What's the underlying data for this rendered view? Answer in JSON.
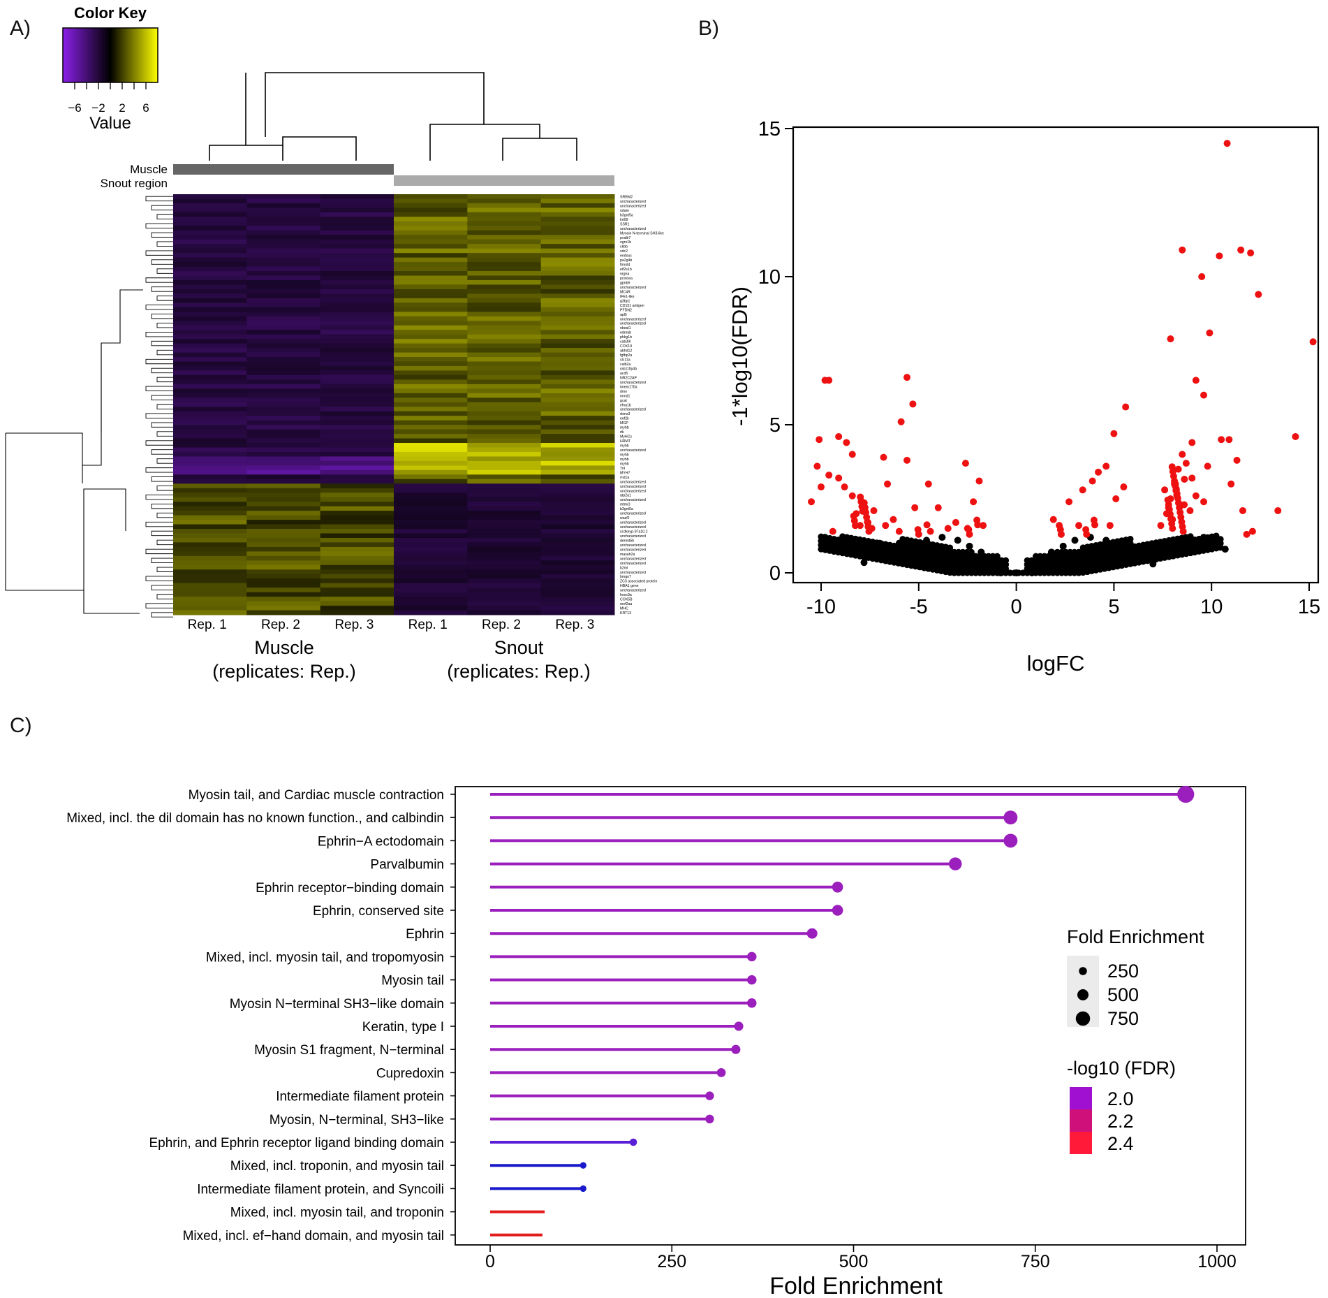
{
  "panels": {
    "a": "A)",
    "b": "B)",
    "c": "C)"
  },
  "color_key": {
    "title": "Color Key",
    "ticks": [
      "−6",
      "−2",
      "2",
      "6"
    ],
    "tick_values": [
      -6,
      -2,
      2,
      6
    ],
    "range": [
      -8,
      8
    ],
    "xlabel": "Value",
    "low_color": "#8a1fe8",
    "mid_color": "#000000",
    "high_color": "#ffff00"
  },
  "heatmap": {
    "annotation_labels": [
      "Muscle",
      "Snout region"
    ],
    "annotation_colors": {
      "muscle": "#666666",
      "snout": "#aaaaaa"
    },
    "column_labels": [
      "Rep. 1",
      "Rep. 2",
      "Rep. 3",
      "Rep. 1",
      "Rep. 2",
      "Rep. 3"
    ],
    "group_labels": [
      {
        "name": "Muscle",
        "sub": "(replicates: Rep.)"
      },
      {
        "name": "Snout",
        "sub": "(replicates: Rep.)"
      }
    ],
    "gene_labels": [
      "SRRM2",
      "uncharacterized",
      "uncharacterized",
      "odam",
      "b3gnt5a",
      "krt99",
      "SSR1",
      "uncharacterized",
      "Myosin N-terminal SH3-like",
      "pvalb7",
      "egrn1b",
      "ckbb",
      "sdc2",
      "endouc",
      "pa2g4b",
      "fmod4",
      "elf2s1b",
      "nrgna",
      "pcolcea",
      "gpnb5",
      "uncharacterized",
      "MC4R",
      "IFE1-like",
      "g3bp1",
      "CD151 antigen",
      "PFDN2",
      "apl5",
      "uncharacterized",
      "uncharacterized",
      "nbeal1",
      "ednrab",
      "phkg1b",
      "cab39l",
      "COX19",
      "abhd12",
      "fgfbp2a",
      "slc11a",
      "calb2a",
      "rab11fip4b",
      "acd5",
      "NR2C2AP",
      "uncharacterized",
      "tmem170a",
      "dmn",
      "mmd1",
      "gcat",
      "efna1b",
      "uncharacterized",
      "rbms3",
      "eef2k",
      "MGP",
      "myhb",
      "rtk",
      "MyHCs",
      "HRMT",
      "myhb",
      "uncharacterized",
      "myhb",
      "myhb",
      "myhb",
      "TnI",
      "MYH7",
      "rnd1a",
      "uncharacterized",
      "uncharacterized",
      "uncharacterized",
      "atp2a1",
      "uncharacterized",
      "mtmr3",
      "b3gnt5a",
      "uncharacterized",
      "wasf2",
      "uncharacterized",
      "uncharacterized",
      "si:dkeyp-97a10.2",
      "uncharacterized",
      "dennd5b",
      "uncharacterized",
      "uncharacterized",
      "masah2a",
      "uncharacterized",
      "uncharacterized",
      "b2ml",
      "uncharacterized",
      "hmgn7",
      "ZC3 associated protein",
      "HBA1 gene",
      "uncharacterized",
      "hoxc9a",
      "COX5B",
      "mef2aa",
      "MHC",
      "KRT13"
    ]
  },
  "chart_data": [
    {
      "type": "scatter",
      "title": "",
      "xlabel": "logFC",
      "ylabel": "-1*log10(FDR)",
      "xlim": [
        -11,
        16
      ],
      "ylim": [
        0,
        15
      ],
      "xticks": [
        -10,
        -5,
        0,
        5,
        10,
        15
      ],
      "yticks": [
        0,
        5,
        10,
        15
      ],
      "xtick_labels": [
        "-10",
        "-5",
        "0",
        "5",
        "10",
        "15"
      ],
      "ytick_labels": [
        "0",
        "5",
        "10",
        "15"
      ],
      "series": [
        {
          "name": "significant",
          "color": "#ee1111",
          "points": [
            [
              10.8,
              14.5
            ],
            [
              8.5,
              10.9
            ],
            [
              10.4,
              10.7
            ],
            [
              11.5,
              10.9
            ],
            [
              12.0,
              10.8
            ],
            [
              9.5,
              10.0
            ],
            [
              12.4,
              9.4
            ],
            [
              9.9,
              8.1
            ],
            [
              7.9,
              7.9
            ],
            [
              15.2,
              7.8
            ],
            [
              -9.8,
              6.5
            ],
            [
              -9.6,
              6.5
            ],
            [
              -5.6,
              6.6
            ],
            [
              9.2,
              6.5
            ],
            [
              9.6,
              6.0
            ],
            [
              -5.3,
              5.7
            ],
            [
              5.6,
              5.6
            ],
            [
              -5.9,
              5.1
            ],
            [
              -10.1,
              4.5
            ],
            [
              5.0,
              4.7
            ],
            [
              14.3,
              4.6
            ],
            [
              10.5,
              4.5
            ],
            [
              10.9,
              4.5
            ],
            [
              9.0,
              4.4
            ],
            [
              -9.1,
              4.6
            ],
            [
              -8.7,
              4.4
            ],
            [
              -8.4,
              4.0
            ],
            [
              -6.8,
              3.9
            ],
            [
              -5.6,
              3.8
            ],
            [
              11.3,
              3.8
            ],
            [
              9.8,
              3.6
            ],
            [
              -10.2,
              3.6
            ],
            [
              -9.6,
              3.3
            ],
            [
              -2.6,
              3.7
            ],
            [
              -1.9,
              3.1
            ],
            [
              -10.0,
              2.9
            ],
            [
              -6.6,
              3.0
            ],
            [
              -4.5,
              3.0
            ],
            [
              -10.5,
              2.4
            ],
            [
              11.0,
              3.0
            ],
            [
              13.4,
              2.1
            ],
            [
              12.1,
              1.4
            ],
            [
              11.8,
              1.3
            ],
            [
              11.6,
              2.1
            ],
            [
              4.6,
              3.6
            ],
            [
              4.2,
              3.4
            ],
            [
              3.9,
              3.1
            ],
            [
              3.4,
              2.8
            ],
            [
              2.7,
              2.4
            ],
            [
              1.9,
              1.8
            ],
            [
              2.2,
              1.6
            ],
            [
              -2.2,
              2.4
            ],
            [
              -1.7,
              1.6
            ],
            [
              -3.1,
              1.7
            ],
            [
              -4.0,
              2.2
            ],
            [
              -5.2,
              2.2
            ],
            [
              -6.3,
              1.8
            ],
            [
              -7.3,
              2.1
            ],
            [
              -7.6,
              1.7
            ],
            [
              -8.0,
              1.6
            ],
            [
              -8.4,
              2.6
            ],
            [
              -8.8,
              2.9
            ],
            [
              -9.1,
              3.2
            ],
            [
              -7.9,
              2.4
            ],
            [
              -8.2,
              2.0
            ],
            [
              -7.4,
              1.5
            ],
            [
              7.4,
              1.6
            ],
            [
              7.7,
              2.0
            ],
            [
              7.9,
              2.5
            ],
            [
              8.1,
              3.0
            ],
            [
              8.3,
              3.5
            ],
            [
              8.5,
              4.0
            ],
            [
              8.7,
              3.7
            ],
            [
              8.2,
              2.8
            ],
            [
              7.8,
              2.2
            ],
            [
              8.0,
              1.8
            ],
            [
              8.6,
              2.3
            ],
            [
              8.9,
              2.1
            ],
            [
              9.2,
              2.6
            ],
            [
              9.6,
              2.4
            ],
            [
              9.0,
              3.2
            ],
            [
              7.6,
              2.8
            ],
            [
              5.1,
              2.5
            ],
            [
              5.5,
              2.9
            ],
            [
              4.8,
              1.6
            ],
            [
              3.2,
              1.6
            ],
            [
              -2.5,
              1.5
            ],
            [
              -3.5,
              1.5
            ],
            [
              -4.4,
              1.4
            ],
            [
              -6.0,
              1.4
            ],
            [
              -6.7,
              1.6
            ],
            [
              -9.4,
              1.4
            ]
          ]
        },
        {
          "name": "not significant",
          "color": "#000000",
          "points": [
            [
              -9.8,
              1.2
            ],
            [
              -9.2,
              1.0
            ],
            [
              -8.6,
              0.9
            ],
            [
              -8.0,
              0.8
            ],
            [
              -7.4,
              0.7
            ],
            [
              -6.8,
              0.55
            ],
            [
              -6.2,
              0.45
            ],
            [
              -5.5,
              0.4
            ],
            [
              -4.8,
              0.3
            ],
            [
              -4.0,
              0.25
            ],
            [
              -3.3,
              0.2
            ],
            [
              -2.6,
              0.15
            ],
            [
              -2.0,
              0.1
            ],
            [
              -1.4,
              0.05
            ],
            [
              -0.8,
              0.0
            ],
            [
              0,
              0
            ],
            [
              0.8,
              0.0
            ],
            [
              1.4,
              0.05
            ],
            [
              2.0,
              0.1
            ],
            [
              2.6,
              0.15
            ],
            [
              3.3,
              0.2
            ],
            [
              4.0,
              0.25
            ],
            [
              4.8,
              0.3
            ],
            [
              5.5,
              0.4
            ],
            [
              6.2,
              0.5
            ],
            [
              6.8,
              0.6
            ],
            [
              7.4,
              0.7
            ],
            [
              8.0,
              0.8
            ],
            [
              8.6,
              0.9
            ],
            [
              9.2,
              1.0
            ],
            [
              9.8,
              1.1
            ],
            [
              10.3,
              1.1
            ],
            [
              10.7,
              0.8
            ],
            [
              -4.6,
              1.1
            ],
            [
              -3.8,
              1.2
            ],
            [
              -3.0,
              1.1
            ],
            [
              -2.4,
              0.9
            ],
            [
              -1.8,
              0.7
            ],
            [
              -1.2,
              0.5
            ],
            [
              1.2,
              0.5
            ],
            [
              1.8,
              0.7
            ],
            [
              2.4,
              0.9
            ],
            [
              3.0,
              1.1
            ],
            [
              3.8,
              1.2
            ],
            [
              4.6,
              1.1
            ],
            [
              5.4,
              1.0
            ],
            [
              6.0,
              0.8
            ],
            [
              7.0,
              0.3
            ],
            [
              7.2,
              1.0
            ],
            [
              -7.0,
              1.0
            ],
            [
              -6.0,
              1.0
            ],
            [
              -5.2,
              0.8
            ],
            [
              -3.6,
              0.7
            ],
            [
              3.6,
              0.7
            ],
            [
              5.0,
              0.7
            ],
            [
              -2.8,
              0.5
            ],
            [
              2.8,
              0.5
            ],
            [
              -4.2,
              0.5
            ],
            [
              4.2,
              0.5
            ],
            [
              9.6,
              1.2
            ],
            [
              -9.5,
              0.8
            ],
            [
              -7.8,
              0.35
            ]
          ]
        }
      ]
    },
    {
      "type": "lollipop",
      "title": "",
      "xlabel": "Fold Enrichment",
      "ylabel": "",
      "xlim": [
        -20,
        1040
      ],
      "xticks": [
        0,
        250,
        500,
        750,
        1000
      ],
      "xtick_labels": [
        "0",
        "250",
        "500",
        "750",
        "1000"
      ],
      "categories": [
        "Myosin tail, and Cardiac muscle contraction",
        "Mixed, incl. the dil domain has no known function., and calbindin",
        "Ephrin−A ectodomain",
        "Parvalbumin",
        "Ephrin receptor−binding domain",
        "Ephrin, conserved site",
        "Ephrin",
        "Mixed, incl. myosin tail, and tropomyosin",
        "Myosin tail",
        "Myosin N−terminal SH3−like domain",
        "Keratin, type I",
        "Myosin S1 fragment, N−terminal",
        "Cupredoxin",
        "Intermediate filament protein",
        "Myosin, N−terminal, SH3−like",
        "Ephrin, and Ephrin receptor ligand binding domain",
        "Mixed, incl. troponin, and myosin tail",
        "Intermediate filament protein, and Syncoili",
        "Mixed, incl. myosin tail, and troponin",
        "Mixed, incl. ef−hand domain, and myosin tail"
      ],
      "values": [
        957,
        716,
        716,
        640,
        478,
        478,
        443,
        360,
        360,
        360,
        342,
        338,
        318,
        302,
        302,
        197,
        128,
        128,
        75,
        72
      ],
      "colors": [
        "#9b1fbd",
        "#9b1fbd",
        "#9b1fbd",
        "#9b1fbd",
        "#9b1fbd",
        "#9b1fbd",
        "#9b1fbd",
        "#9b1fbd",
        "#9b1fbd",
        "#9b1fbd",
        "#9b1fbd",
        "#9b1fbd",
        "#9b1fbd",
        "#9b1fbd",
        "#9b1fbd",
        "#5a1ed6",
        "#1a1acc",
        "#1a1acc",
        "#e21b1b",
        "#e21b1b"
      ],
      "legend": {
        "size_title": "Fold Enrichment",
        "size_labels": [
          "250",
          "500",
          "750"
        ],
        "size_values": [
          250,
          500,
          750
        ],
        "color_title": "-log10 (FDR)",
        "color_labels": [
          "2.0",
          "2.2",
          "2.4"
        ],
        "color_values": [
          "#a010d0",
          "#d0107a",
          "#ff1a3a"
        ]
      }
    }
  ]
}
